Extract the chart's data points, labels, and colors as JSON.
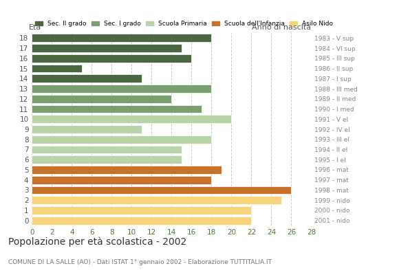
{
  "ages": [
    18,
    17,
    16,
    15,
    14,
    13,
    12,
    11,
    10,
    9,
    8,
    7,
    6,
    5,
    4,
    3,
    2,
    1,
    0
  ],
  "values": [
    18,
    15,
    16,
    5,
    11,
    18,
    14,
    17,
    20,
    11,
    18,
    15,
    15,
    19,
    18,
    26,
    25,
    22,
    22
  ],
  "colors": [
    "#4a6741",
    "#4a6741",
    "#4a6741",
    "#4a6741",
    "#4a6741",
    "#7a9e6e",
    "#7a9e6e",
    "#7a9e6e",
    "#b8d4a8",
    "#b8d4a8",
    "#b8d4a8",
    "#b8d4a8",
    "#b8d4a8",
    "#c8712a",
    "#c8712a",
    "#c8712a",
    "#f5d47a",
    "#f5d47a",
    "#f5d47a"
  ],
  "right_labels": [
    "1983 - V sup",
    "1984 - VI sup",
    "1985 - III sup",
    "1986 - II sup",
    "1987 - I sup",
    "1988 - III med",
    "1989 - II med",
    "1990 - I med",
    "1991 - V el",
    "1992 - IV el",
    "1993 - III el",
    "1994 - II el",
    "1995 - I el",
    "1996 - mat",
    "1997 - mat",
    "1998 - mat",
    "1999 - nido",
    "2000 - nido",
    "2001 - nido"
  ],
  "legend_labels": [
    "Sec. II grado",
    "Sec. I grado",
    "Scuola Primaria",
    "Scuola dell'Infanzia",
    "Asilo Nido"
  ],
  "legend_colors": [
    "#4a6741",
    "#7a9e6e",
    "#b8d4a8",
    "#c8712a",
    "#f5d47a"
  ],
  "title": "Popolazione per età scolastica - 2002",
  "subtitle": "COMUNE DI LA SALLE (AO) - Dati ISTAT 1° gennaio 2002 - Elaborazione TUTTITALIA.IT",
  "xlabel_age": "Età",
  "xlabel_year": "Anno di nascita",
  "xlim": [
    0,
    28
  ],
  "xticks": [
    0,
    2,
    4,
    6,
    8,
    10,
    12,
    14,
    16,
    18,
    20,
    22,
    24,
    26,
    28
  ],
  "background_color": "#ffffff",
  "grid_color": "#cccccc"
}
